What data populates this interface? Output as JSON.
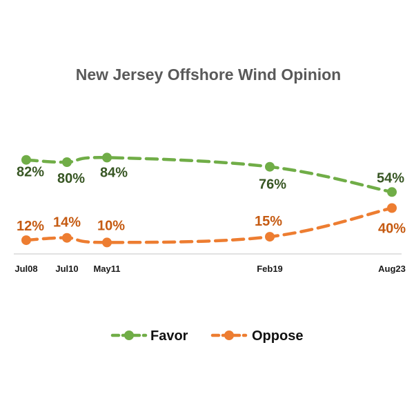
{
  "chart_data": {
    "type": "line",
    "title": "New Jersey Offshore Wind Opinion",
    "xlabel": "",
    "ylabel": "",
    "categories": [
      "Jul08",
      "Jul10",
      "May11",
      "Feb19",
      "Aug23"
    ],
    "ylim": [
      0,
      100
    ],
    "grid": false,
    "legend_position": "bottom",
    "series": [
      {
        "name": "Favor",
        "values": [
          82,
          80,
          84,
          76,
          54
        ],
        "labels": [
          "82%",
          "80%",
          "84%",
          "76%",
          "54%"
        ],
        "color": "#70ad47",
        "label_color": "#375623"
      },
      {
        "name": "Oppose",
        "values": [
          12,
          14,
          10,
          15,
          40
        ],
        "labels": [
          "12%",
          "14%",
          "10%",
          "15%",
          "40%"
        ],
        "color": "#ed7d31",
        "label_color": "#c55a11"
      }
    ]
  }
}
